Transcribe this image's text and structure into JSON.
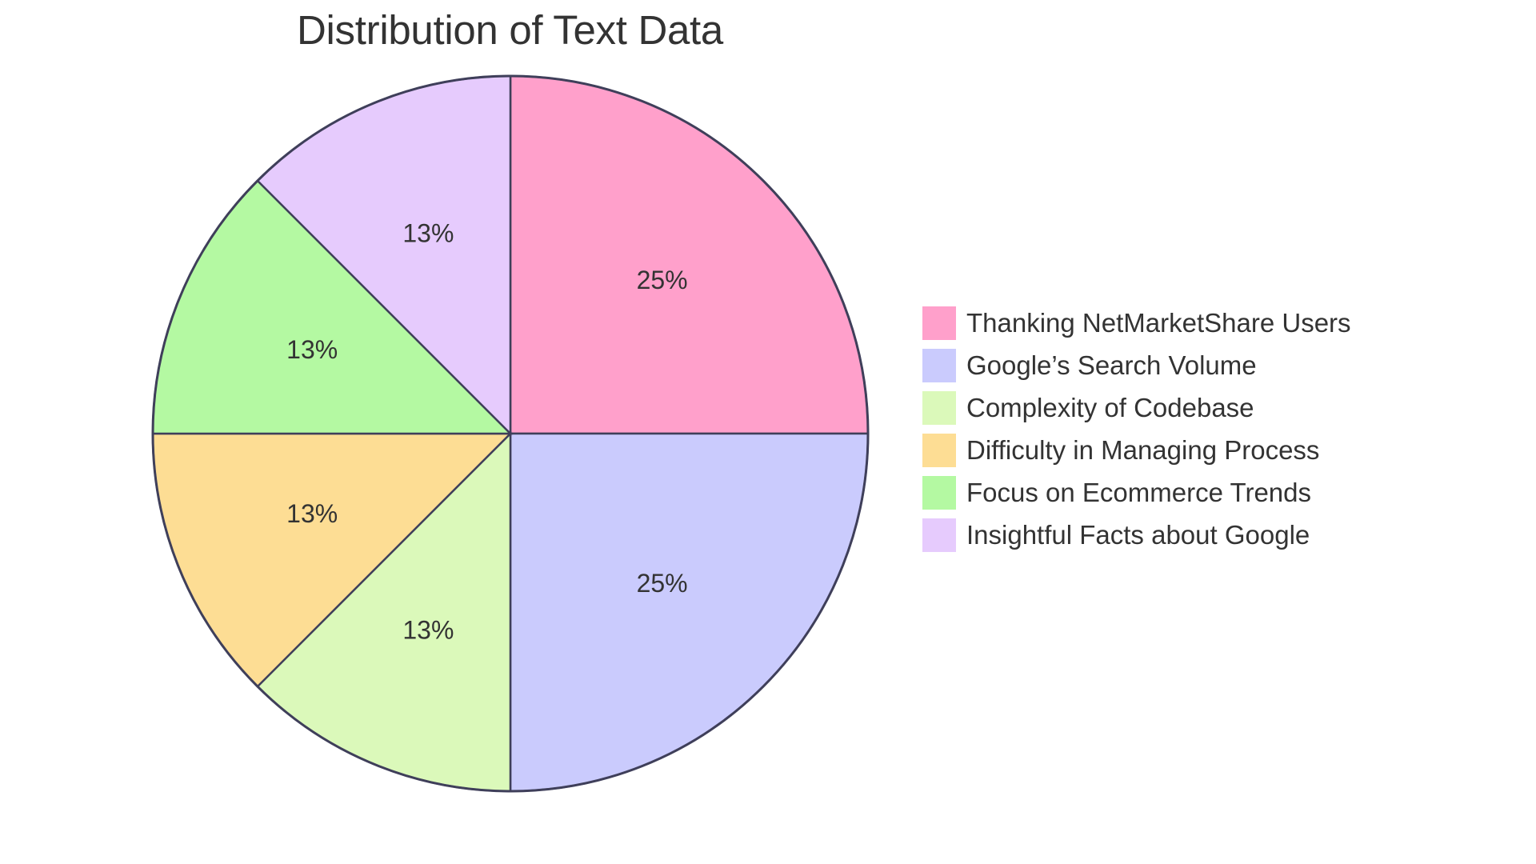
{
  "chart": {
    "title": "Distribution of Text Data",
    "stroke_color": "#3f3f5a",
    "text_color": "#333333"
  },
  "chart_data": {
    "type": "pie",
    "title": "Distribution of Text Data",
    "categories": [
      "Thanking NetMarketShare Users",
      "Google’s Search Volume",
      "Complexity of Codebase",
      "Difficulty in Managing Process",
      "Focus on Ecommerce Trends",
      "Insightful Facts about Google"
    ],
    "values": [
      25,
      25,
      12.5,
      12.5,
      12.5,
      12.5
    ],
    "labels": [
      "25%",
      "25%",
      "13%",
      "13%",
      "13%",
      "13%"
    ],
    "colors": [
      "#ffa0cb",
      "#cacbfd",
      "#dbf9ba",
      "#fddd94",
      "#b4f9a2",
      "#e6cbfd"
    ],
    "legend_position": "right",
    "start_angle": "12 o'clock, clockwise"
  },
  "legend": {
    "items": [
      {
        "label": "Thanking NetMarketShare Users",
        "color": "#ffa0cb"
      },
      {
        "label": "Google’s Search Volume",
        "color": "#cacbfd"
      },
      {
        "label": "Complexity of Codebase",
        "color": "#dbf9ba"
      },
      {
        "label": "Difficulty in Managing Process",
        "color": "#fddd94"
      },
      {
        "label": "Focus on Ecommerce Trends",
        "color": "#b4f9a2"
      },
      {
        "label": "Insightful Facts about Google",
        "color": "#e6cbfd"
      }
    ]
  }
}
